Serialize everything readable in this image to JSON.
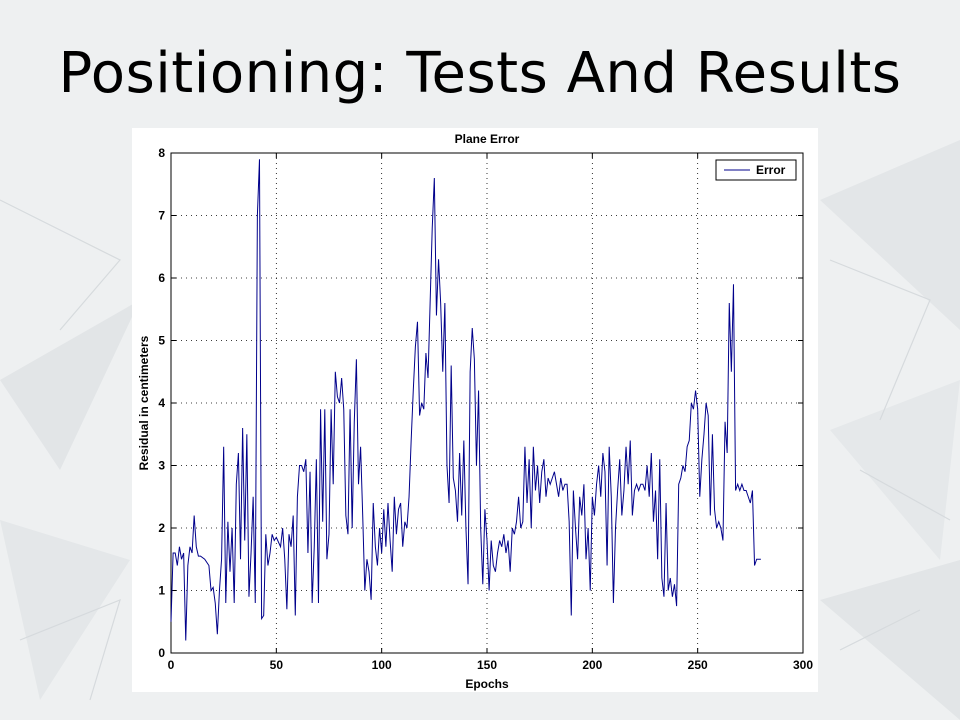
{
  "slide": {
    "title": "Positioning: Tests And Results"
  },
  "chart_data": {
    "type": "line",
    "title": "Plane Error",
    "xlabel": "Epochs",
    "ylabel": "Residual in centimeters",
    "xlim": [
      0,
      300
    ],
    "ylim": [
      0,
      8
    ],
    "xticks": [
      0,
      50,
      100,
      150,
      200,
      250,
      300
    ],
    "yticks": [
      0,
      1,
      2,
      3,
      4,
      5,
      6,
      7,
      8
    ],
    "grid": true,
    "legend": "top-right",
    "series": [
      {
        "name": "Error",
        "color": "#00008b",
        "keypoints": [
          [
            0,
            0.5
          ],
          [
            1,
            1.6
          ],
          [
            2,
            1.6
          ],
          [
            3,
            1.4
          ],
          [
            4,
            1.7
          ],
          [
            5,
            1.5
          ],
          [
            6,
            1.6
          ],
          [
            7,
            0.2
          ],
          [
            8,
            1.4
          ],
          [
            9,
            1.7
          ],
          [
            10,
            1.6
          ],
          [
            11,
            2.2
          ],
          [
            12,
            1.7
          ],
          [
            13,
            1.55
          ],
          [
            14,
            1.55
          ],
          [
            16,
            1.5
          ],
          [
            18,
            1.4
          ],
          [
            19,
            1.0
          ],
          [
            20,
            1.05
          ],
          [
            21,
            0.8
          ],
          [
            22,
            0.3
          ],
          [
            23,
            1.0
          ],
          [
            24,
            1.5
          ],
          [
            25,
            3.3
          ],
          [
            26,
            0.8
          ],
          [
            27,
            2.1
          ],
          [
            28,
            1.3
          ],
          [
            29,
            2.0
          ],
          [
            30,
            0.8
          ],
          [
            31,
            2.7
          ],
          [
            32,
            3.2
          ],
          [
            33,
            1.5
          ],
          [
            34,
            3.6
          ],
          [
            35,
            1.8
          ],
          [
            36,
            3.5
          ],
          [
            37,
            0.9
          ],
          [
            38,
            1.6
          ],
          [
            39,
            2.5
          ],
          [
            40,
            0.8
          ],
          [
            41,
            7.0
          ],
          [
            42,
            7.9
          ],
          [
            43,
            0.55
          ],
          [
            44,
            0.6
          ],
          [
            45,
            1.9
          ],
          [
            46,
            1.4
          ],
          [
            47,
            1.6
          ],
          [
            48,
            1.9
          ],
          [
            49,
            1.8
          ],
          [
            50,
            1.85
          ],
          [
            52,
            1.7
          ],
          [
            53,
            2.0
          ],
          [
            54,
            1.5
          ],
          [
            55,
            0.7
          ],
          [
            56,
            1.9
          ],
          [
            57,
            1.7
          ],
          [
            58,
            2.2
          ],
          [
            59,
            0.6
          ],
          [
            60,
            2.5
          ],
          [
            61,
            3.0
          ],
          [
            62,
            3.0
          ],
          [
            63,
            2.9
          ],
          [
            64,
            3.1
          ],
          [
            65,
            1.6
          ],
          [
            66,
            2.9
          ],
          [
            67,
            0.8
          ],
          [
            68,
            1.7
          ],
          [
            69,
            3.1
          ],
          [
            70,
            0.8
          ],
          [
            71,
            3.9
          ],
          [
            72,
            2.1
          ],
          [
            73,
            3.9
          ],
          [
            74,
            1.5
          ],
          [
            75,
            1.9
          ],
          [
            76,
            3.9
          ],
          [
            77,
            2.7
          ],
          [
            78,
            4.5
          ],
          [
            79,
            4.1
          ],
          [
            80,
            4.0
          ],
          [
            81,
            4.4
          ],
          [
            82,
            3.9
          ],
          [
            83,
            2.2
          ],
          [
            84,
            1.9
          ],
          [
            85,
            3.9
          ],
          [
            86,
            2.0
          ],
          [
            87,
            3.7
          ],
          [
            88,
            4.7
          ],
          [
            89,
            2.7
          ],
          [
            90,
            3.3
          ],
          [
            91,
            2.2
          ],
          [
            92,
            1.0
          ],
          [
            93,
            1.5
          ],
          [
            94,
            1.3
          ],
          [
            95,
            0.85
          ],
          [
            96,
            2.4
          ],
          [
            97,
            1.7
          ],
          [
            98,
            1.4
          ],
          [
            99,
            2.0
          ],
          [
            100,
            1.6
          ],
          [
            101,
            2.3
          ],
          [
            102,
            1.7
          ],
          [
            103,
            2.4
          ],
          [
            104,
            1.8
          ],
          [
            105,
            1.3
          ],
          [
            106,
            2.5
          ],
          [
            107,
            1.9
          ],
          [
            108,
            2.3
          ],
          [
            109,
            2.4
          ],
          [
            110,
            1.7
          ],
          [
            111,
            2.1
          ],
          [
            112,
            2.0
          ],
          [
            113,
            2.5
          ],
          [
            114,
            3.4
          ],
          [
            115,
            4.2
          ],
          [
            116,
            4.9
          ],
          [
            117,
            5.3
          ],
          [
            118,
            3.8
          ],
          [
            119,
            4.0
          ],
          [
            120,
            3.9
          ],
          [
            121,
            4.8
          ],
          [
            122,
            4.4
          ],
          [
            123,
            5.6
          ],
          [
            124,
            6.8
          ],
          [
            125,
            7.6
          ],
          [
            126,
            5.4
          ],
          [
            127,
            6.3
          ],
          [
            128,
            5.6
          ],
          [
            129,
            4.5
          ],
          [
            130,
            5.6
          ],
          [
            131,
            3.0
          ],
          [
            132,
            2.4
          ],
          [
            133,
            4.6
          ],
          [
            134,
            2.8
          ],
          [
            135,
            2.6
          ],
          [
            136,
            2.1
          ],
          [
            137,
            3.2
          ],
          [
            138,
            2.2
          ],
          [
            139,
            3.4
          ],
          [
            140,
            2.0
          ],
          [
            141,
            1.1
          ],
          [
            142,
            4.5
          ],
          [
            143,
            5.2
          ],
          [
            144,
            4.7
          ],
          [
            145,
            3.0
          ],
          [
            146,
            4.2
          ],
          [
            147,
            2.0
          ],
          [
            148,
            1.1
          ],
          [
            149,
            2.3
          ],
          [
            150,
            1.8
          ],
          [
            151,
            1.0
          ],
          [
            152,
            1.8
          ],
          [
            153,
            1.4
          ],
          [
            154,
            1.3
          ],
          [
            155,
            1.6
          ],
          [
            156,
            1.8
          ],
          [
            157,
            1.7
          ],
          [
            158,
            1.9
          ],
          [
            159,
            1.6
          ],
          [
            160,
            1.8
          ],
          [
            161,
            1.3
          ],
          [
            162,
            2.0
          ],
          [
            163,
            1.9
          ],
          [
            164,
            2.1
          ],
          [
            165,
            2.5
          ],
          [
            166,
            2.0
          ],
          [
            167,
            2.1
          ],
          [
            168,
            3.3
          ],
          [
            169,
            2.4
          ],
          [
            170,
            3.1
          ],
          [
            171,
            2.0
          ],
          [
            172,
            3.3
          ],
          [
            173,
            2.6
          ],
          [
            174,
            3.0
          ],
          [
            175,
            2.4
          ],
          [
            176,
            2.9
          ],
          [
            177,
            3.1
          ],
          [
            178,
            2.5
          ],
          [
            179,
            2.8
          ],
          [
            180,
            2.7
          ],
          [
            181,
            2.8
          ],
          [
            182,
            2.9
          ],
          [
            183,
            2.7
          ],
          [
            184,
            2.5
          ],
          [
            185,
            2.8
          ],
          [
            186,
            2.6
          ],
          [
            187,
            2.7
          ],
          [
            188,
            2.7
          ],
          [
            189,
            2.1
          ],
          [
            190,
            0.6
          ],
          [
            191,
            2.6
          ],
          [
            192,
            2.0
          ],
          [
            193,
            1.5
          ],
          [
            194,
            2.5
          ],
          [
            195,
            2.2
          ],
          [
            196,
            2.7
          ],
          [
            197,
            1.5
          ],
          [
            198,
            2.0
          ],
          [
            199,
            1.0
          ],
          [
            200,
            2.5
          ],
          [
            201,
            2.2
          ],
          [
            202,
            2.7
          ],
          [
            203,
            3.0
          ],
          [
            204,
            2.5
          ],
          [
            205,
            3.2
          ],
          [
            206,
            2.9
          ],
          [
            207,
            1.4
          ],
          [
            208,
            3.3
          ],
          [
            209,
            2.5
          ],
          [
            210,
            0.8
          ],
          [
            211,
            2.0
          ],
          [
            212,
            2.6
          ],
          [
            213,
            3.1
          ],
          [
            214,
            2.2
          ],
          [
            215,
            2.6
          ],
          [
            216,
            3.3
          ],
          [
            217,
            2.7
          ],
          [
            218,
            3.4
          ],
          [
            219,
            2.2
          ],
          [
            220,
            2.6
          ],
          [
            221,
            2.7
          ],
          [
            222,
            2.6
          ],
          [
            223,
            2.7
          ],
          [
            224,
            2.7
          ],
          [
            225,
            2.6
          ],
          [
            226,
            3.0
          ],
          [
            227,
            2.5
          ],
          [
            228,
            3.2
          ],
          [
            229,
            2.1
          ],
          [
            230,
            2.6
          ],
          [
            231,
            1.5
          ],
          [
            232,
            3.1
          ],
          [
            233,
            1.2
          ],
          [
            234,
            0.9
          ],
          [
            235,
            2.4
          ],
          [
            236,
            1.0
          ],
          [
            237,
            1.2
          ],
          [
            238,
            0.9
          ],
          [
            239,
            1.1
          ],
          [
            240,
            0.75
          ],
          [
            241,
            2.7
          ],
          [
            242,
            2.8
          ],
          [
            243,
            3.0
          ],
          [
            244,
            2.9
          ],
          [
            245,
            3.3
          ],
          [
            246,
            3.4
          ],
          [
            247,
            4.0
          ],
          [
            248,
            3.9
          ],
          [
            249,
            4.2
          ],
          [
            250,
            3.9
          ],
          [
            251,
            2.5
          ],
          [
            252,
            3.1
          ],
          [
            253,
            3.5
          ],
          [
            254,
            4.0
          ],
          [
            255,
            3.8
          ],
          [
            256,
            2.2
          ],
          [
            257,
            3.5
          ],
          [
            258,
            2.3
          ],
          [
            259,
            2.0
          ],
          [
            260,
            2.1
          ],
          [
            261,
            2.0
          ],
          [
            262,
            1.8
          ],
          [
            263,
            3.7
          ],
          [
            264,
            3.2
          ],
          [
            265,
            5.6
          ],
          [
            266,
            4.5
          ],
          [
            267,
            5.9
          ],
          [
            268,
            2.6
          ],
          [
            269,
            2.7
          ],
          [
            270,
            2.6
          ],
          [
            271,
            2.7
          ],
          [
            272,
            2.6
          ],
          [
            273,
            2.6
          ],
          [
            274,
            2.5
          ],
          [
            275,
            2.4
          ],
          [
            276,
            2.6
          ],
          [
            277,
            1.4
          ],
          [
            278,
            1.5
          ],
          [
            279,
            1.5
          ],
          [
            280,
            1.5
          ]
        ]
      }
    ]
  }
}
